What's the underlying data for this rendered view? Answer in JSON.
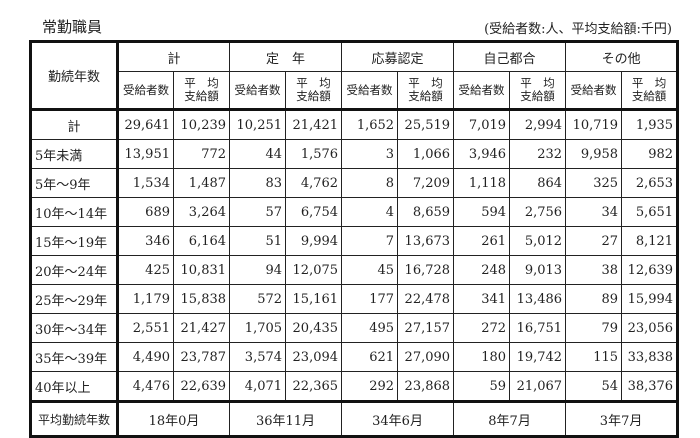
{
  "title": "常勤職員",
  "units": "(受給者数:人、平均支給額:千円)",
  "row_header": "勤続年数",
  "groups": [
    "計",
    "定　年",
    "応募認定",
    "自己都合",
    "その他"
  ],
  "sub_headers": {
    "count": "受給者数",
    "avg_line1": "平　均",
    "avg_line2": "支給額"
  },
  "rows": [
    {
      "label": "計",
      "values": [
        "29,641",
        "10,239",
        "10,251",
        "21,421",
        "1,652",
        "25,519",
        "7,019",
        "2,994",
        "10,719",
        "1,935"
      ]
    },
    {
      "label": "5年未満",
      "values": [
        "13,951",
        "772",
        "44",
        "1,576",
        "3",
        "1,066",
        "3,946",
        "232",
        "9,958",
        "982"
      ]
    },
    {
      "label": "5年～9年",
      "values": [
        "1,534",
        "1,487",
        "83",
        "4,762",
        "8",
        "7,209",
        "1,118",
        "864",
        "325",
        "2,653"
      ]
    },
    {
      "label": "10年～14年",
      "values": [
        "689",
        "3,264",
        "57",
        "6,754",
        "4",
        "8,659",
        "594",
        "2,756",
        "34",
        "5,651"
      ]
    },
    {
      "label": "15年～19年",
      "values": [
        "346",
        "6,164",
        "51",
        "9,994",
        "7",
        "13,673",
        "261",
        "5,012",
        "27",
        "8,121"
      ]
    },
    {
      "label": "20年～24年",
      "values": [
        "425",
        "10,831",
        "94",
        "12,075",
        "45",
        "16,728",
        "248",
        "9,013",
        "38",
        "12,639"
      ]
    },
    {
      "label": "25年～29年",
      "values": [
        "1,179",
        "15,838",
        "572",
        "15,161",
        "177",
        "22,478",
        "341",
        "13,486",
        "89",
        "15,994"
      ]
    },
    {
      "label": "30年～34年",
      "values": [
        "2,551",
        "21,427",
        "1,705",
        "20,435",
        "495",
        "27,157",
        "272",
        "16,751",
        "79",
        "23,056"
      ]
    },
    {
      "label": "35年～39年",
      "values": [
        "4,490",
        "23,787",
        "3,574",
        "23,094",
        "621",
        "27,090",
        "180",
        "19,742",
        "115",
        "33,838"
      ]
    },
    {
      "label": "40年以上",
      "values": [
        "4,476",
        "22,639",
        "4,071",
        "22,365",
        "292",
        "23,868",
        "59",
        "21,067",
        "54",
        "38,376"
      ]
    }
  ],
  "footer": {
    "label": "平均勤続年数",
    "values": [
      "18年0月",
      "36年11月",
      "34年6月",
      "8年7月",
      "3年7月"
    ]
  }
}
